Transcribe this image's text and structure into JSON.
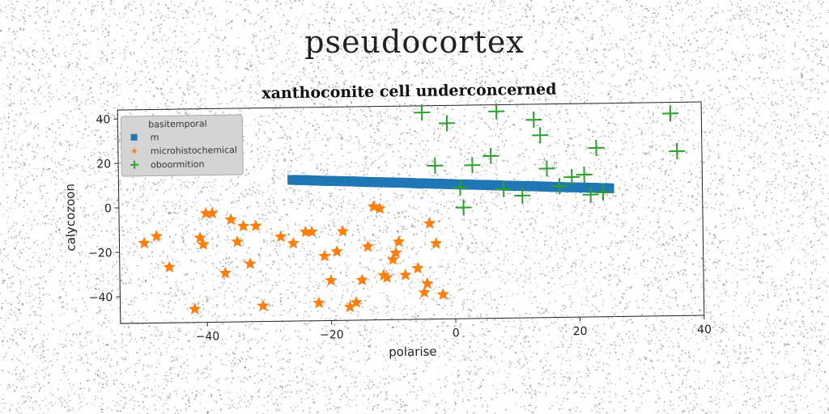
{
  "figure": {
    "suptitle": "pseudocortex"
  },
  "chart_data": {
    "type": "scatter",
    "title": "xanthoconite cell underconcerned",
    "xlabel": "polarise",
    "ylabel": "calycozoon",
    "xlim": [
      -54,
      40
    ],
    "ylim": [
      -52,
      44
    ],
    "xticks": [
      -40,
      -20,
      0,
      20,
      40
    ],
    "yticks": [
      -40,
      -20,
      0,
      20,
      40
    ],
    "grid": false,
    "legend": {
      "title": "basitemporal",
      "placement": "top-left"
    },
    "series": [
      {
        "name": "m",
        "marker": "square",
        "color": "#1f77b4",
        "x": [
          -26,
          -24,
          -22,
          -20,
          -18,
          -16,
          -14,
          -12,
          -10,
          -8,
          -6,
          -4,
          -2,
          0,
          2,
          4,
          6,
          8,
          10,
          12,
          14,
          16,
          18,
          20,
          22,
          24,
          25
        ],
        "y": [
          11.5,
          11.3,
          11.0,
          10.8,
          10.6,
          10.4,
          10.1,
          9.9,
          9.7,
          9.5,
          9.2,
          9.0,
          8.8,
          8.5,
          8.3,
          8.1,
          7.9,
          7.6,
          7.4,
          7.2,
          7.0,
          6.7,
          6.5,
          6.3,
          6.1,
          5.8,
          5.7
        ]
      },
      {
        "name": "microhistochemical",
        "marker": "star",
        "color": "#ff7f0e",
        "x": [
          -50,
          -48,
          -46,
          -42,
          -41,
          -40.5,
          -40,
          -39,
          -37,
          -36,
          -35,
          -34,
          -33,
          -32,
          -31,
          -28,
          -26,
          -24,
          -23,
          -22,
          -21,
          -20,
          -19,
          -18,
          -17,
          -16,
          -15,
          -14,
          -13,
          -12,
          -11.5,
          -11,
          -10,
          -9.5,
          -9,
          -8,
          -6,
          -5,
          -4.5,
          -4,
          -3,
          -2
        ],
        "y": [
          -16,
          -13,
          -27,
          -46,
          -14,
          -17,
          -3,
          -3,
          -30,
          -6,
          -16,
          -9,
          -26,
          -9,
          -45,
          -14,
          -17,
          -12,
          -12,
          -44,
          -23,
          -34,
          -21,
          -12,
          -46,
          -44,
          -34,
          -19,
          -1,
          -2,
          -32,
          -33,
          -25,
          -22,
          -17,
          -32,
          -29,
          -40,
          -36,
          -9,
          -18,
          -41
        ]
      },
      {
        "name": "oboormition",
        "marker": "plus",
        "color": "#2ca02c",
        "x": [
          -5,
          -3,
          -1,
          1,
          1.5,
          3,
          6,
          7,
          8,
          11,
          13,
          14,
          15,
          17,
          19,
          21,
          22,
          23,
          24,
          35,
          36
        ],
        "y": [
          41,
          17,
          36,
          7,
          -2,
          17,
          21,
          41,
          6,
          3,
          37,
          30,
          15,
          7,
          11,
          12,
          3,
          24,
          4,
          39,
          22
        ]
      }
    ]
  },
  "ticks": {
    "x": [
      "−40",
      "−20",
      "0",
      "20",
      "40"
    ],
    "y": [
      "−40",
      "−20",
      "0",
      "20",
      "40"
    ]
  }
}
